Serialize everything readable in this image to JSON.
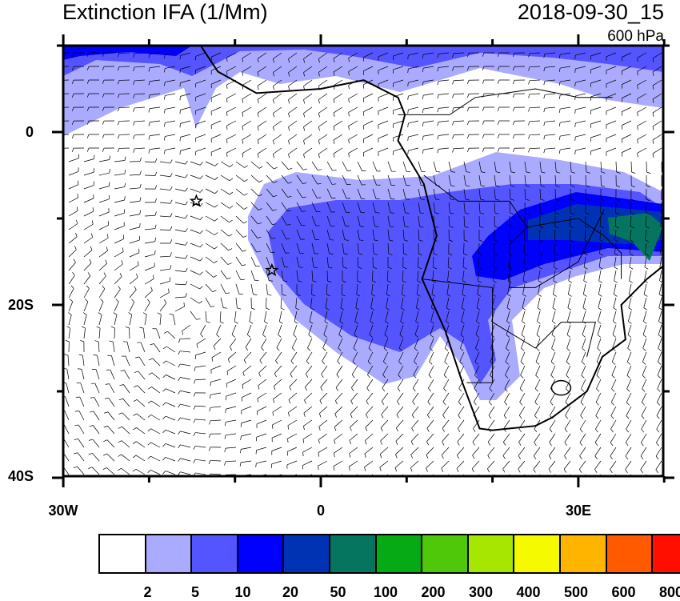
{
  "header": {
    "title": "Extinction IFA (1/Mm)",
    "valid_time": "2018-09-30_15",
    "level": "600 hPa"
  },
  "map": {
    "lon_range": [
      -30,
      40
    ],
    "lat_range": [
      -40,
      10
    ],
    "x_ticks": [
      "30W",
      "0",
      "30E"
    ],
    "y_ticks": [
      "0",
      "20S",
      "40S"
    ],
    "overlays": [
      "wind-barbs",
      "coastlines",
      "country-borders"
    ],
    "markers": [
      {
        "icon": "star-icon",
        "lon": -14.5,
        "lat": -8
      },
      {
        "icon": "star-icon",
        "lon": -5.7,
        "lat": -16
      }
    ]
  },
  "colorbar": {
    "colors": [
      "#ffffff",
      "#aaaaff",
      "#5555ff",
      "#0000ff",
      "#0033b3",
      "#06755f",
      "#06aa14",
      "#50c80a",
      "#a6e600",
      "#f5fa00",
      "#ffb400",
      "#ff5a00",
      "#ff0f00"
    ],
    "labels": [
      "2",
      "5",
      "10",
      "20",
      "50",
      "100",
      "200",
      "300",
      "400",
      "500",
      "600",
      "800"
    ]
  }
}
